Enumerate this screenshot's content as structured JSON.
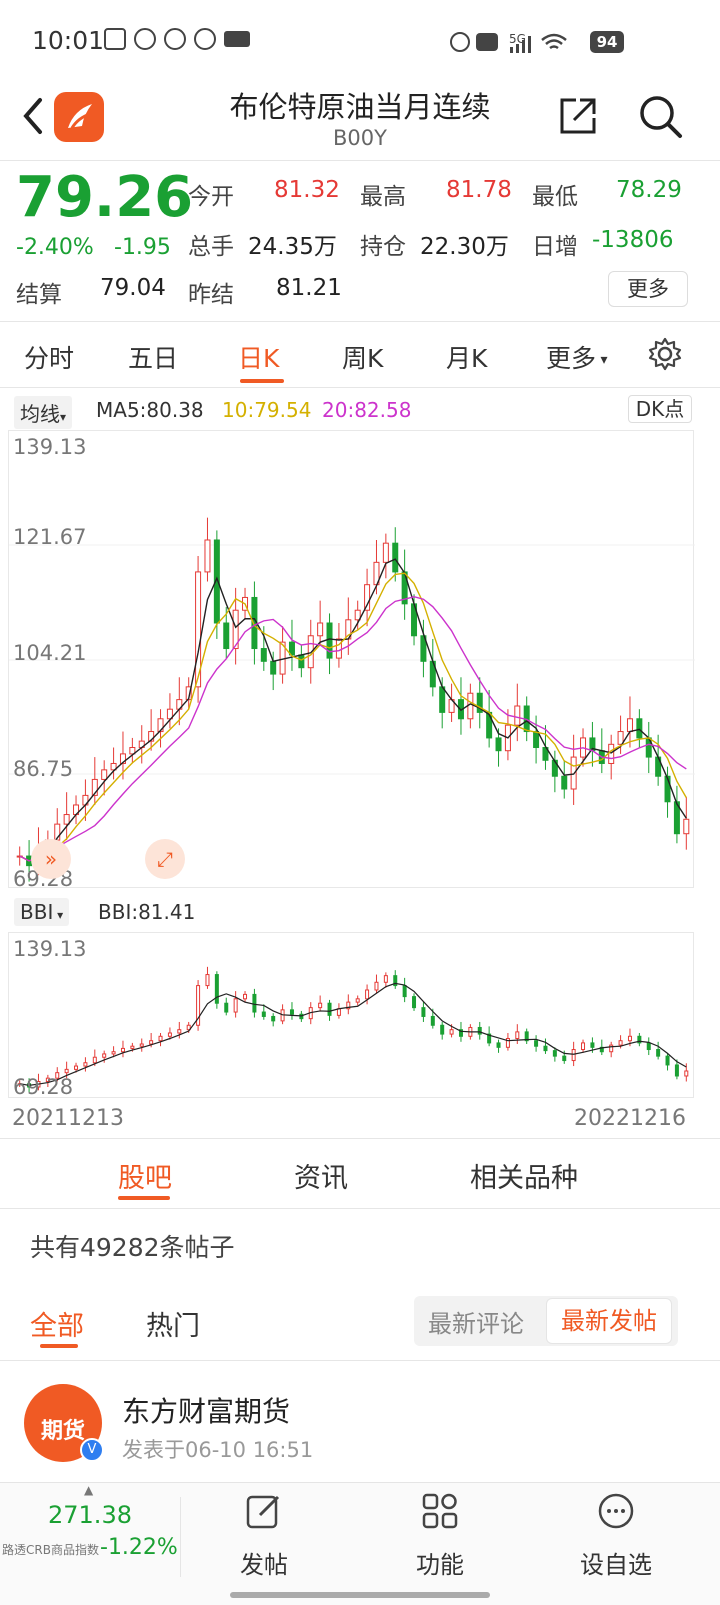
{
  "status": {
    "time": "10:01",
    "battery": "94",
    "network": "5G"
  },
  "header": {
    "title": "布伦特原油当月连续",
    "code": "B00Y"
  },
  "quote": {
    "price": "79.26",
    "change_pct": "-2.40%",
    "change": "-1.95",
    "open_label": "今开",
    "open": "81.32",
    "high_label": "最高",
    "high": "81.78",
    "low_label": "最低",
    "low": "78.29",
    "volume_label": "总手",
    "volume": "24.35万",
    "oi_label": "持仓",
    "oi": "22.30万",
    "daily_label": "日增",
    "daily": "-13806",
    "settle_label": "结算",
    "settle": "79.04",
    "prev_settle_label": "昨结",
    "prev_settle": "81.21",
    "more": "更多"
  },
  "tabs": [
    "分时",
    "五日",
    "日K",
    "周K",
    "月K",
    "更多"
  ],
  "active_tab": "日K",
  "ma": {
    "selector": "均线",
    "ma5": "MA5:80.38",
    "ma10": "10:79.54",
    "ma20": "20:82.58",
    "dk": "DK点"
  },
  "main_chart": {
    "y_labels": [
      "139.13",
      "121.67",
      "104.21",
      "86.75",
      "69.28"
    ]
  },
  "bbi": {
    "selector": "BBI",
    "value": "BBI:81.41",
    "y_top": "139.13",
    "y_bottom": "69.28"
  },
  "dates": {
    "start": "20211213",
    "end": "20221216"
  },
  "sub_tabs": [
    "股吧",
    "资讯",
    "相关品种"
  ],
  "post_count": "共有49282条帖子",
  "filters": {
    "all": "全部",
    "hot": "热门",
    "latest_comment": "最新评论",
    "latest_post": "最新发帖"
  },
  "post": {
    "avatar_text": "期货",
    "author": "东方财富期货",
    "time": "发表于06-10 16:51"
  },
  "bottom": {
    "index_value": "271.38",
    "index_name": "路透CRB商品指数",
    "index_change": "-1.22%",
    "nav": [
      "发帖",
      "功能",
      "设自选"
    ]
  },
  "colors": {
    "accent": "#f05a24",
    "up": "#e53935",
    "down": "#1aa033",
    "ma5": "#222222",
    "ma10": "#d4b000",
    "ma20": "#cc33cc"
  },
  "chart_data": {
    "type": "candlestick",
    "y_range": [
      69.28,
      139.13
    ],
    "x_range": [
      "20211213",
      "20221216"
    ],
    "ma5_last": 80.38,
    "ma10_last": 79.54,
    "ma20_last": 82.58,
    "close_series": [
      73.5,
      72.0,
      74.5,
      76.0,
      78.5,
      80.0,
      81.5,
      83.0,
      85.5,
      87.0,
      88.0,
      89.5,
      90.5,
      91.5,
      93.0,
      95.0,
      96.5,
      98.0,
      100.0,
      118.0,
      123.0,
      110.0,
      106.0,
      112.0,
      114.0,
      106.0,
      104.0,
      102.0,
      107.0,
      105.0,
      103.0,
      108.0,
      110.0,
      104.5,
      107.5,
      110.5,
      112.0,
      116.0,
      119.5,
      122.5,
      118.0,
      113.0,
      108.0,
      104.0,
      100.0,
      96.0,
      98.0,
      95.0,
      99.0,
      96.0,
      92.0,
      90.0,
      94.0,
      97.0,
      93.0,
      90.5,
      88.5,
      86.0,
      84.0,
      89.0,
      92.0,
      90.0,
      88.0,
      91.0,
      93.0,
      95.0,
      92.0,
      89.0,
      86.0,
      82.0,
      77.0,
      79.26
    ]
  }
}
